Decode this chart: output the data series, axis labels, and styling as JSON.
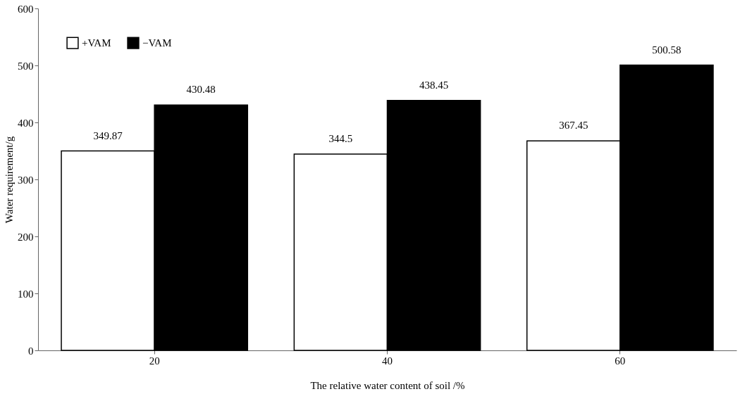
{
  "chart_data": {
    "type": "bar",
    "xlabel": "The relative water content of soil /%",
    "ylabel": "Water requirement/g",
    "categories": [
      "20",
      "40",
      "60"
    ],
    "series": [
      {
        "name": "+VAM",
        "color": "#ffffff",
        "values": [
          349.87,
          344.5,
          367.45
        ]
      },
      {
        "name": "−VAM",
        "color": "#000000",
        "values": [
          430.48,
          438.45,
          500.58
        ]
      }
    ],
    "ylim": [
      0,
      600
    ],
    "yticks": [
      0,
      100,
      200,
      300,
      400,
      500,
      600
    ],
    "grid": false,
    "legend": "top left",
    "data_labels": true
  }
}
